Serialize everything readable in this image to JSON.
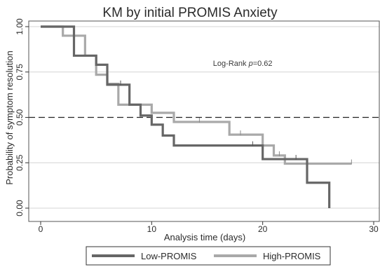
{
  "chart_data": {
    "type": "line",
    "step": true,
    "title": "KM by initial PROMIS Anxiety",
    "xlabel": "Analysis time (days)",
    "ylabel": "Probability of symptom resolution",
    "xlim": [
      0,
      30
    ],
    "ylim": [
      0,
      1
    ],
    "xticks": [
      0,
      10,
      20,
      30
    ],
    "yticks": [
      0,
      0.25,
      0.5,
      0.75,
      1.0
    ],
    "ytick_labels": [
      "0.00",
      "0.25",
      "0.50",
      "0.75",
      "1.00"
    ],
    "grid": "horizontal",
    "reference_line": {
      "y": 0.5,
      "style": "dashed"
    },
    "annotation": {
      "prefix": "Log-Rank ",
      "italic": "p",
      "suffix": "=0.62",
      "x": 18.2,
      "y": 0.8
    },
    "legend_position": "bottom",
    "series": [
      {
        "name": "Low-PROMIS",
        "color": "#666666",
        "steps": [
          [
            0,
            1.0
          ],
          [
            3,
            0.84
          ],
          [
            5,
            0.79
          ],
          [
            6,
            0.68
          ],
          [
            8,
            0.57
          ],
          [
            9,
            0.51
          ],
          [
            10,
            0.46
          ],
          [
            11,
            0.4
          ],
          [
            12,
            0.345
          ],
          [
            20,
            0.27
          ],
          [
            24,
            0.14
          ],
          [
            26,
            0.0
          ]
        ],
        "end": 26,
        "censored": [
          [
            7.2,
            0.68
          ],
          [
            19.1,
            0.345
          ],
          [
            23,
            0.27
          ]
        ]
      },
      {
        "name": "High-PROMIS",
        "color": "#a9a9a9",
        "steps": [
          [
            0,
            1.0
          ],
          [
            2,
            0.95
          ],
          [
            4,
            0.84
          ],
          [
            5,
            0.735
          ],
          [
            6,
            0.685
          ],
          [
            7,
            0.57
          ],
          [
            8,
            0.57
          ],
          [
            10,
            0.525
          ],
          [
            12,
            0.475
          ],
          [
            17,
            0.405
          ],
          [
            20,
            0.345
          ],
          [
            21,
            0.29
          ],
          [
            22,
            0.245
          ]
        ],
        "end": 28,
        "censored": [
          [
            14.3,
            0.475
          ],
          [
            18,
            0.405
          ],
          [
            21.5,
            0.29
          ],
          [
            28,
            0.245
          ]
        ]
      }
    ]
  }
}
